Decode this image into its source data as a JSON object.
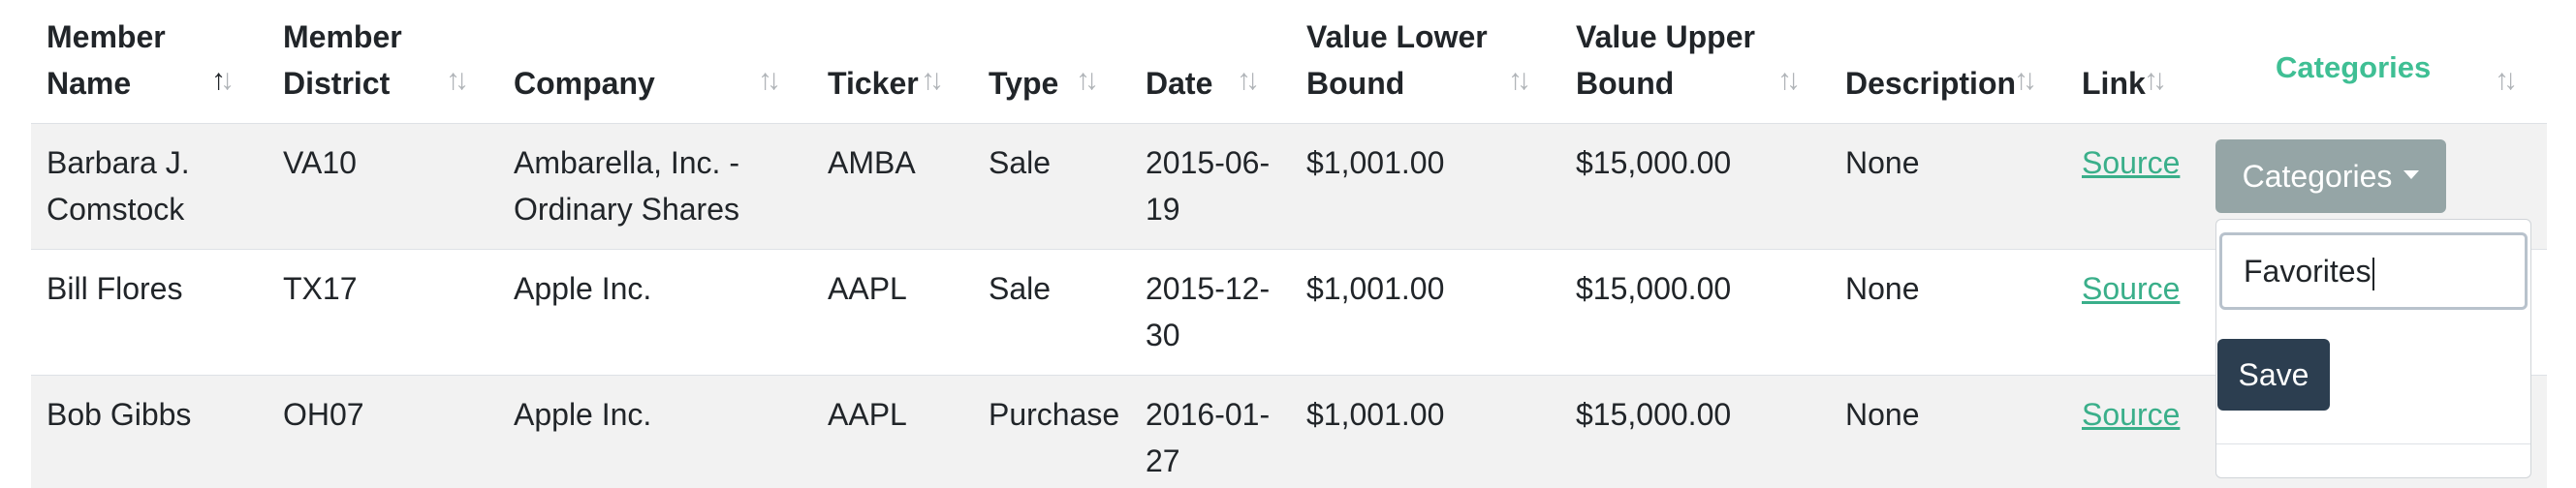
{
  "headers": [
    {
      "line1": "Member",
      "line2": "Name"
    },
    {
      "line1": "Member",
      "line2": "District"
    },
    {
      "line1": "",
      "line2": "Company"
    },
    {
      "line1": "",
      "line2": "Ticker"
    },
    {
      "line1": "",
      "line2": "Type"
    },
    {
      "line1": "",
      "line2": "Date"
    },
    {
      "line1": "Value Lower",
      "line2": "Bound"
    },
    {
      "line1": "Value Upper",
      "line2": "Bound"
    },
    {
      "line1": "",
      "line2": "Description"
    },
    {
      "line1": "",
      "line2": "Link"
    },
    {
      "line1": "",
      "line2": "Categories"
    }
  ],
  "sort_arrows": "↑↓",
  "rows": [
    {
      "name": [
        "Barbara J.",
        "Comstock"
      ],
      "district": "VA10",
      "company": [
        "Ambarella, Inc. -",
        "Ordinary Shares"
      ],
      "ticker": "AMBA",
      "type": "Sale",
      "date": [
        "2015-06-",
        "19"
      ],
      "lower": "$1,001.00",
      "upper": "$15,000.00",
      "description": "None",
      "link": "Source"
    },
    {
      "name": [
        "Bill Flores",
        ""
      ],
      "district": "TX17",
      "company": [
        "Apple Inc.",
        ""
      ],
      "ticker": "AAPL",
      "type": "Sale",
      "date": [
        "2015-12-",
        "30"
      ],
      "lower": "$1,001.00",
      "upper": "$15,000.00",
      "description": "None",
      "link": "Source"
    },
    {
      "name": [
        "Bob Gibbs",
        ""
      ],
      "district": "OH07",
      "company": [
        "Apple Inc.",
        ""
      ],
      "ticker": "AAPL",
      "type": "Purchase",
      "date": [
        "2016-01-",
        "27"
      ],
      "lower": "$1,001.00",
      "upper": "$15,000.00",
      "description": "None",
      "link": "Source"
    }
  ],
  "categories_button": "Categories",
  "dropdown": {
    "input_value": "Favorites",
    "save_label": "Save"
  },
  "colors": {
    "accent_link": "#3aaf8a",
    "categories_button": "#95a5a6",
    "save_button": "#2c3e50"
  }
}
